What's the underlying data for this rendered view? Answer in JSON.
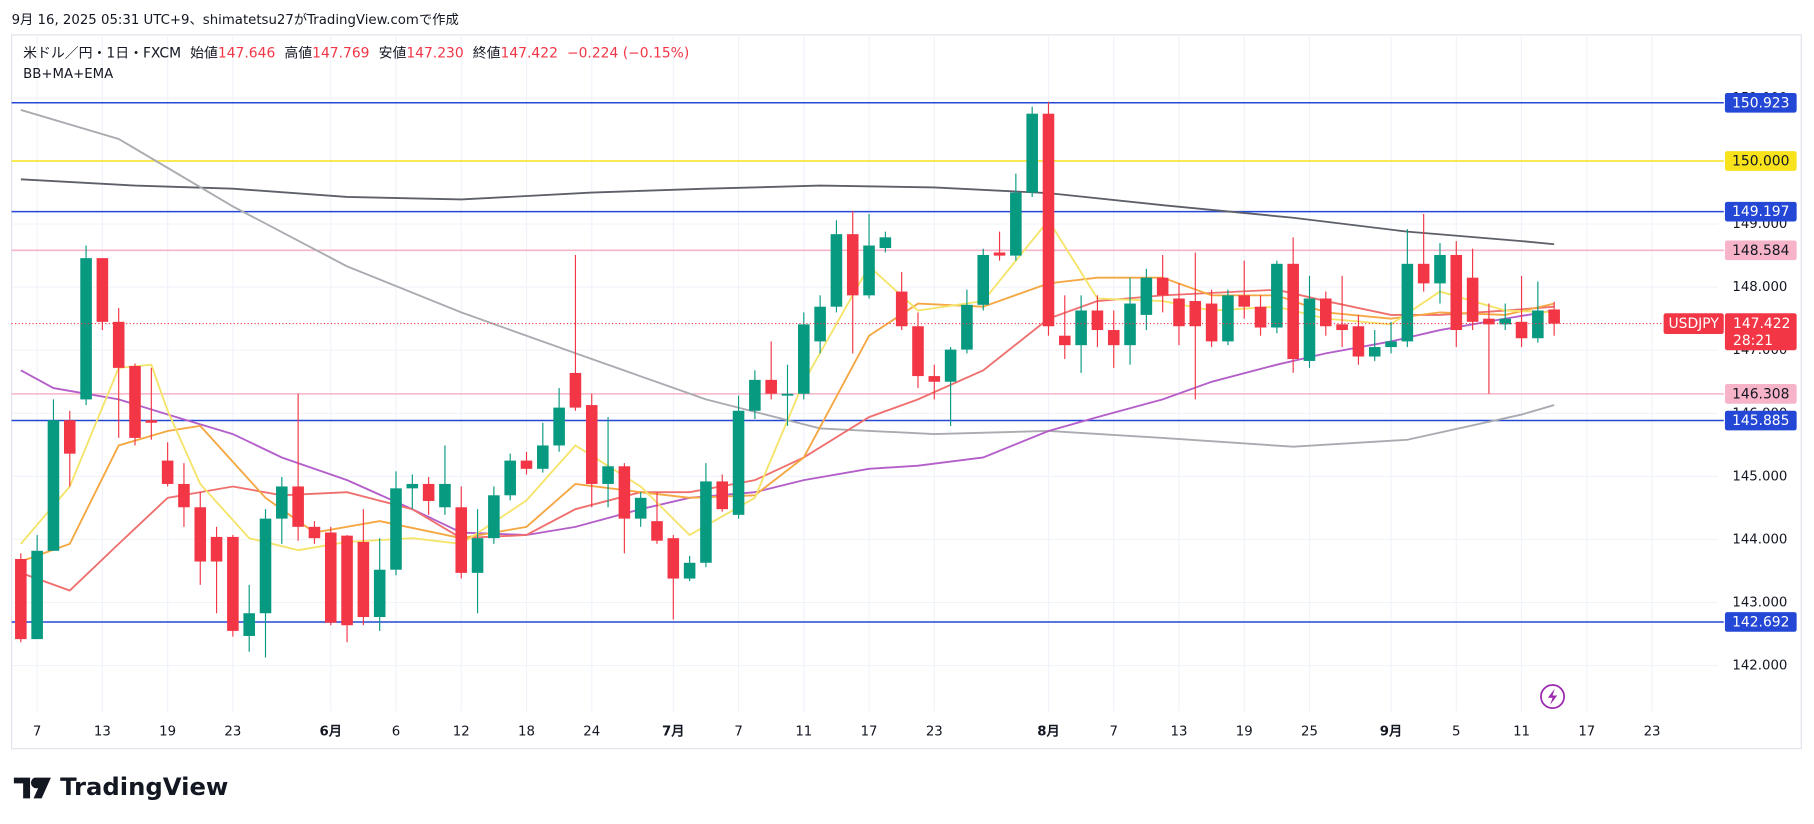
{
  "header": {
    "caption": "9月 16, 2025 05:31 UTC+9、shimatetsu27がTradingView.comで作成",
    "symbol": "米ドル／円・1日・FXCM",
    "open_label": "始値",
    "open": "147.646",
    "high_label": "高値",
    "high": "147.769",
    "low_label": "安値",
    "low": "147.230",
    "close_label": "終値",
    "close": "147.422",
    "change": "−0.224 (−0.15%)",
    "indicators": "BB+MA+EMA"
  },
  "chart_data": {
    "type": "candlestick",
    "up_color": "#089981",
    "down_color": "#f23645",
    "categories": [
      null,
      "7",
      null,
      null,
      null,
      "13",
      null,
      null,
      null,
      "19",
      null,
      null,
      null,
      "23",
      null,
      null,
      null,
      null,
      null,
      "6月",
      null,
      null,
      null,
      "6",
      null,
      null,
      null,
      "12",
      null,
      null,
      null,
      "18",
      null,
      null,
      null,
      "24",
      null,
      null,
      null,
      null,
      "7月",
      null,
      null,
      null,
      "7",
      null,
      null,
      null,
      "11",
      null,
      null,
      null,
      "17",
      null,
      null,
      null,
      "23",
      null,
      null,
      null,
      null,
      null,
      null,
      "8月",
      null,
      null,
      null,
      "7",
      null,
      null,
      null,
      "13",
      null,
      null,
      null,
      "19",
      null,
      null,
      null,
      "25",
      null,
      null,
      null,
      null,
      "9月",
      null,
      null,
      null,
      "5",
      null,
      null,
      null,
      "11",
      null,
      null,
      null,
      "17",
      null,
      null,
      null,
      "23"
    ],
    "open": [
      143.69,
      142.42,
      143.82,
      145.89,
      146.22,
      148.46,
      147.45,
      146.75,
      145.89,
      145.25,
      144.88,
      144.51,
      144.04,
      144.04,
      142.47,
      142.83,
      144.33,
      144.84,
      144.2,
      144.11,
      144.06,
      143.96,
      142.77,
      143.52,
      144.81,
      144.88,
      144.51,
      144.51,
      143.47,
      144.02,
      144.7,
      145.25,
      145.12,
      145.49,
      146.64,
      146.13,
      144.88,
      145.16,
      144.33,
      144.29,
      144.02,
      143.38,
      143.63,
      144.92,
      144.39,
      146.04,
      146.53,
      146.28,
      146.31,
      147.14,
      147.69,
      148.84,
      147.87,
      148.62,
      147.93,
      147.38,
      146.59,
      146.5,
      147.01,
      147.72,
      148.55,
      148.5,
      149.5,
      150.75,
      147.23,
      147.08,
      147.63,
      147.32,
      147.08,
      147.56,
      148.15,
      147.82,
      147.78,
      147.74,
      147.14,
      147.87,
      147.69,
      147.36,
      148.37,
      146.83,
      147.82,
      147.41,
      147.38,
      146.9,
      147.05,
      147.14,
      148.37,
      148.06,
      148.51,
      148.15,
      147.5,
      147.41,
      147.45,
      147.19,
      147.646,
      null,
      null,
      null,
      null,
      null,
      null
    ],
    "high": [
      143.78,
      144.07,
      146.22,
      146.04,
      148.66,
      148.46,
      147.67,
      146.79,
      146.72,
      145.54,
      145.21,
      144.75,
      144.2,
      144.07,
      143.28,
      144.48,
      144.99,
      146.31,
      144.29,
      144.2,
      144.07,
      144.48,
      144.02,
      145.08,
      145.03,
      144.99,
      145.49,
      144.84,
      144.48,
      144.84,
      145.36,
      145.39,
      145.85,
      146.4,
      148.51,
      146.31,
      145.94,
      145.21,
      144.75,
      144.75,
      144.07,
      143.74,
      145.21,
      145.03,
      146.28,
      146.68,
      147.14,
      146.77,
      147.6,
      147.87,
      149.06,
      149.21,
      149.16,
      148.88,
      148.24,
      147.6,
      146.77,
      147.05,
      147.96,
      148.61,
      148.88,
      149.8,
      150.86,
      150.94,
      147.87,
      147.87,
      147.87,
      147.63,
      148.15,
      148.29,
      148.51,
      148.06,
      148.55,
      147.96,
      147.96,
      148.42,
      147.87,
      148.42,
      148.79,
      148.18,
      147.93,
      148.18,
      147.56,
      147.32,
      147.45,
      148.92,
      149.16,
      148.7,
      148.73,
      148.61,
      147.74,
      147.74,
      148.18,
      148.09,
      147.769,
      null,
      null,
      null,
      null,
      null,
      null
    ],
    "low": [
      142.37,
      142.42,
      143.82,
      144.84,
      146.13,
      147.32,
      145.61,
      145.49,
      145.58,
      144.84,
      144.2,
      143.28,
      142.83,
      142.46,
      142.22,
      142.13,
      143.93,
      143.98,
      143.93,
      142.64,
      142.37,
      142.64,
      142.55,
      143.43,
      144.48,
      144.39,
      144.39,
      143.38,
      142.83,
      143.93,
      144.62,
      145.03,
      145.06,
      145.39,
      146.04,
      144.51,
      144.51,
      143.78,
      144.2,
      143.93,
      142.73,
      143.34,
      143.56,
      144.44,
      144.33,
      145.91,
      146.22,
      145.8,
      146.22,
      146.95,
      147.6,
      146.95,
      147.82,
      148.55,
      147.32,
      146.4,
      146.22,
      145.8,
      146.95,
      147.63,
      148.42,
      148.42,
      149.43,
      147.23,
      146.86,
      146.64,
      147.05,
      146.72,
      146.77,
      147.32,
      147.6,
      147.08,
      146.22,
      147.05,
      147.08,
      147.5,
      147.23,
      147.27,
      146.64,
      146.72,
      147.23,
      147.05,
      146.77,
      146.83,
      146.95,
      147.05,
      147.93,
      147.74,
      147.05,
      147.32,
      146.31,
      147.32,
      147.05,
      147.12,
      147.23,
      null,
      null,
      null,
      null,
      null,
      null
    ],
    "close": [
      142.42,
      143.82,
      145.89,
      145.36,
      148.46,
      147.45,
      146.72,
      145.61,
      145.85,
      144.88,
      144.51,
      143.65,
      143.65,
      142.55,
      142.83,
      144.33,
      144.84,
      144.2,
      144.02,
      142.68,
      142.64,
      142.77,
      143.52,
      144.81,
      144.88,
      144.61,
      144.88,
      143.47,
      144.02,
      144.7,
      145.25,
      145.12,
      145.49,
      146.09,
      146.09,
      144.88,
      145.16,
      144.33,
      144.66,
      143.98,
      143.38,
      143.63,
      144.92,
      144.48,
      146.04,
      146.53,
      146.31,
      146.31,
      147.41,
      147.69,
      148.84,
      147.87,
      148.66,
      148.79,
      147.38,
      146.59,
      146.5,
      147.01,
      147.72,
      148.51,
      148.5,
      149.5,
      150.75,
      147.38,
      147.08,
      147.63,
      147.32,
      147.08,
      147.74,
      148.15,
      147.87,
      147.38,
      147.38,
      147.14,
      147.87,
      147.69,
      147.36,
      148.37,
      146.86,
      147.82,
      147.38,
      147.32,
      146.9,
      147.05,
      147.14,
      148.37,
      148.06,
      148.51,
      147.32,
      147.45,
      147.41,
      147.5,
      147.19,
      147.63,
      147.422,
      null,
      null,
      null,
      null,
      null,
      null
    ],
    "ylim": [
      141.27,
      152.0
    ],
    "yticks": [
      {
        "value": 142,
        "label": "142.000"
      },
      {
        "value": 143,
        "label": "143.000"
      },
      {
        "value": 144,
        "label": "144.000"
      },
      {
        "value": 145,
        "label": "145.000"
      },
      {
        "value": 146,
        "label": "146.000"
      },
      {
        "value": 147,
        "label": "147.000"
      },
      {
        "value": 148,
        "label": "148.000"
      },
      {
        "value": 149,
        "label": "149.000"
      },
      {
        "value": 151,
        "label": "151.000"
      }
    ],
    "grid": true,
    "indicators": [
      {
        "color": "#5d6069",
        "x": [
          0,
          7,
          13,
          20,
          27,
          35,
          42,
          49,
          56,
          63,
          70,
          78,
          85,
          92,
          94
        ],
        "values": [
          149.71,
          149.61,
          149.56,
          149.43,
          149.39,
          149.5,
          149.56,
          149.61,
          149.58,
          149.49,
          149.3,
          149.1,
          148.88,
          148.73,
          148.68
        ]
      },
      {
        "color": "#a9abb0",
        "x": [
          0,
          6,
          13,
          20,
          27,
          35,
          42,
          49,
          56,
          63,
          70,
          78,
          85,
          92,
          94
        ],
        "values": [
          150.81,
          150.35,
          149.28,
          148.33,
          147.6,
          146.86,
          146.22,
          145.76,
          145.67,
          145.72,
          145.61,
          145.47,
          145.58,
          145.98,
          146.13
        ]
      },
      {
        "color": "#b35ec9",
        "x": [
          0,
          2,
          6,
          9,
          13,
          16,
          20,
          24,
          27,
          31,
          34,
          38,
          41,
          45,
          48,
          52,
          55,
          59,
          63,
          66,
          70,
          73,
          77,
          80,
          84,
          87,
          91,
          94
        ],
        "values": [
          146.68,
          146.4,
          146.22,
          145.98,
          145.67,
          145.3,
          144.94,
          144.48,
          144.11,
          144.07,
          144.2,
          144.48,
          144.66,
          144.75,
          144.94,
          145.12,
          145.17,
          145.3,
          145.72,
          145.94,
          146.22,
          146.5,
          146.77,
          146.95,
          147.14,
          147.32,
          147.5,
          147.63
        ]
      },
      {
        "color": "#ef6f6f",
        "x": [
          0,
          3,
          6,
          9,
          13,
          16,
          20,
          24,
          27,
          31,
          34,
          38,
          41,
          45,
          48,
          52,
          55,
          59,
          63,
          66,
          70,
          77,
          80,
          84,
          87,
          91,
          94
        ],
        "values": [
          143.47,
          143.19,
          143.93,
          144.66,
          144.84,
          144.7,
          144.75,
          144.48,
          144.02,
          144.07,
          144.48,
          144.75,
          144.75,
          144.94,
          145.3,
          145.94,
          146.22,
          146.68,
          147.5,
          147.78,
          147.87,
          147.96,
          147.78,
          147.56,
          147.56,
          147.63,
          147.69
        ]
      },
      {
        "color": "#f5a742",
        "x": [
          0,
          3,
          6,
          9,
          11,
          15,
          18,
          22,
          27,
          31,
          34,
          38,
          41,
          45,
          48,
          52,
          55,
          59,
          63,
          66,
          70,
          73,
          77,
          80,
          84,
          87,
          91,
          94
        ],
        "values": [
          143.65,
          143.93,
          145.49,
          145.72,
          145.8,
          144.66,
          144.11,
          144.29,
          144.02,
          144.2,
          144.88,
          144.75,
          144.66,
          144.7,
          145.3,
          147.23,
          147.74,
          147.69,
          148.06,
          148.15,
          148.15,
          147.87,
          147.87,
          147.6,
          147.5,
          147.6,
          147.56,
          147.74
        ]
      },
      {
        "color": "#f5e46a",
        "x": [
          0,
          3,
          6,
          8,
          9,
          11,
          14,
          17,
          20,
          24,
          27,
          31,
          34,
          38,
          41,
          45,
          48,
          52,
          55,
          59,
          63,
          66,
          70,
          73,
          77,
          80,
          84,
          87,
          91,
          94
        ],
        "values": [
          143.93,
          144.84,
          146.72,
          146.77,
          146.04,
          144.88,
          144.02,
          143.83,
          143.96,
          144.02,
          143.93,
          144.62,
          145.49,
          144.84,
          144.07,
          144.66,
          146.5,
          148.33,
          147.63,
          147.78,
          149.06,
          147.82,
          147.78,
          147.63,
          147.69,
          147.5,
          147.41,
          147.93,
          147.63,
          147.6
        ]
      }
    ],
    "levels": [
      {
        "value": 150.923,
        "label": "150.923",
        "color": "#2447d6"
      },
      {
        "value": 150.0,
        "label": "150.000",
        "color": "#f7e21b"
      },
      {
        "value": 149.197,
        "label": "149.197",
        "color": "#2447d6"
      },
      {
        "value": 148.584,
        "label": "148.584",
        "color": "#f7b3c8"
      },
      {
        "value": 146.308,
        "label": "146.308",
        "color": "#f7b3c8"
      },
      {
        "value": 145.885,
        "label": "145.885",
        "color": "#2447d6"
      },
      {
        "value": 142.692,
        "label": "142.692",
        "color": "#2447d6"
      }
    ],
    "last_price": {
      "symbol": "USDJPY",
      "value": 147.422,
      "label": "147.422",
      "countdown": "28:21",
      "color": "#f23645"
    }
  },
  "footer": {
    "logo": "TradingView"
  }
}
